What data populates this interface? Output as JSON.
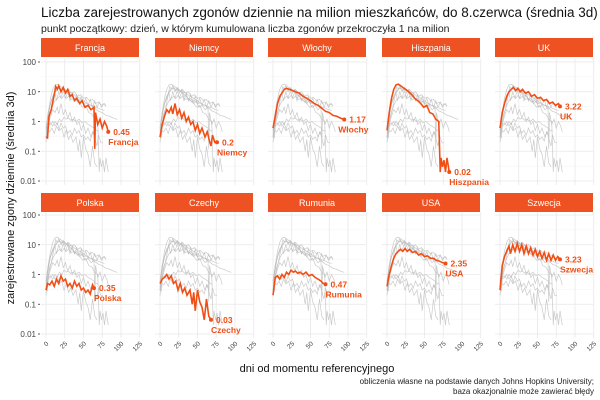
{
  "chart_data": {
    "type": "line",
    "title": "Liczba zarejestrowanych zgonów dziennie na milion mieszkańców, do 8.czerwca (średnia 3d)",
    "subtitle": "punkt początkowy: dzień, w którym kumulowana liczba zgonów przekroczyła 1 na milion",
    "xlabel": "dni od momentu referencyjnego",
    "ylabel": "zarejestrowane zgony dziennie (średnia 3d)",
    "caption": [
      "obliczenia własne na podstawie danych Johns Hopkins University;",
      "baza okazjonalnie może zawierać błędy"
    ],
    "x_ticks": [
      "0",
      "25",
      "50",
      "75",
      "100",
      "125"
    ],
    "y_ticks": [
      "100",
      "10",
      "1",
      "0.1",
      "0.01"
    ],
    "xlim": [
      0,
      125
    ],
    "ylim": [
      0.01,
      100
    ],
    "y_scale": "log10",
    "grid": true,
    "colors": {
      "highlight": "#F04E15",
      "strip": "#EE5223",
      "background_series": "#BDBDBD"
    },
    "facets": [
      {
        "name": "Francja",
        "last": "0.45",
        "values": [
          [
            0,
            0.3
          ],
          [
            2,
            0.28
          ],
          [
            4,
            1.5
          ],
          [
            7,
            2.5
          ],
          [
            10,
            6
          ],
          [
            13,
            15
          ],
          [
            15,
            12
          ],
          [
            17,
            16
          ],
          [
            20,
            10
          ],
          [
            23,
            14
          ],
          [
            26,
            9
          ],
          [
            29,
            12
          ],
          [
            32,
            7
          ],
          [
            35,
            8
          ],
          [
            38,
            5
          ],
          [
            41,
            6
          ],
          [
            45,
            4
          ],
          [
            48,
            5
          ],
          [
            52,
            3
          ],
          [
            56,
            3.5
          ],
          [
            60,
            2.5
          ],
          [
            63,
            2.8
          ],
          [
            64,
            3
          ],
          [
            65,
            0.12
          ],
          [
            66,
            2
          ],
          [
            69,
            0.8
          ],
          [
            72,
            1.2
          ],
          [
            75,
            0.6
          ],
          [
            78,
            1
          ],
          [
            81,
            0.7
          ],
          [
            83,
            0.45
          ]
        ]
      },
      {
        "name": "Niemcy",
        "last": "0.2",
        "values": [
          [
            0,
            0.3
          ],
          [
            3,
            0.8
          ],
          [
            6,
            1.5
          ],
          [
            9,
            2.5
          ],
          [
            12,
            2
          ],
          [
            15,
            3
          ],
          [
            17,
            1.8
          ],
          [
            20,
            4
          ],
          [
            23,
            1.7
          ],
          [
            26,
            2.5
          ],
          [
            29,
            1.3
          ],
          [
            32,
            2
          ],
          [
            35,
            1
          ],
          [
            38,
            1.4
          ],
          [
            41,
            0.8
          ],
          [
            44,
            1
          ],
          [
            47,
            0.5
          ],
          [
            50,
            0.8
          ],
          [
            53,
            0.4
          ],
          [
            56,
            0.6
          ],
          [
            60,
            0.3
          ],
          [
            63,
            0.45
          ],
          [
            66,
            0.22
          ],
          [
            68,
            0.15
          ],
          [
            70,
            0.35
          ],
          [
            73,
            0.2
          ],
          [
            76,
            0.2
          ]
        ]
      },
      {
        "name": "Włochy",
        "last": "1.17",
        "values": [
          [
            0,
            0.6
          ],
          [
            3,
            1.5
          ],
          [
            6,
            4
          ],
          [
            9,
            7
          ],
          [
            12,
            9
          ],
          [
            15,
            12
          ],
          [
            18,
            13
          ],
          [
            22,
            12
          ],
          [
            26,
            11
          ],
          [
            30,
            10
          ],
          [
            35,
            9
          ],
          [
            40,
            7
          ],
          [
            45,
            6
          ],
          [
            50,
            5
          ],
          [
            55,
            4
          ],
          [
            60,
            3.5
          ],
          [
            65,
            2.8
          ],
          [
            70,
            2.2
          ],
          [
            75,
            2
          ],
          [
            80,
            1.6
          ],
          [
            85,
            1.5
          ],
          [
            90,
            1.3
          ],
          [
            95,
            1.17
          ]
        ]
      },
      {
        "name": "Hiszpania",
        "last": "0.02",
        "values": [
          [
            0,
            0.5
          ],
          [
            3,
            2
          ],
          [
            6,
            6
          ],
          [
            9,
            12
          ],
          [
            12,
            17
          ],
          [
            15,
            18
          ],
          [
            18,
            16
          ],
          [
            21,
            14
          ],
          [
            25,
            12
          ],
          [
            29,
            10
          ],
          [
            33,
            8
          ],
          [
            37,
            6
          ],
          [
            41,
            5
          ],
          [
            45,
            4
          ],
          [
            49,
            3
          ],
          [
            53,
            3.5
          ],
          [
            57,
            2
          ],
          [
            61,
            1.8
          ],
          [
            65,
            1.2
          ],
          [
            69,
            1
          ],
          [
            71,
            0.02
          ],
          [
            72,
            0.06
          ],
          [
            74,
            0.03
          ],
          [
            76,
            0.05
          ],
          [
            78,
            0.02
          ],
          [
            80,
            0.06
          ],
          [
            83,
            0.02
          ]
        ]
      },
      {
        "name": "UK",
        "last": "3.22",
        "values": [
          [
            0,
            0.6
          ],
          [
            3,
            2
          ],
          [
            6,
            4
          ],
          [
            9,
            7
          ],
          [
            12,
            10
          ],
          [
            15,
            12
          ],
          [
            18,
            14
          ],
          [
            21,
            11
          ],
          [
            24,
            13
          ],
          [
            27,
            10
          ],
          [
            30,
            12
          ],
          [
            34,
            9
          ],
          [
            38,
            10
          ],
          [
            42,
            7
          ],
          [
            46,
            8
          ],
          [
            50,
            6
          ],
          [
            54,
            6.5
          ],
          [
            58,
            5
          ],
          [
            62,
            5.5
          ],
          [
            66,
            4
          ],
          [
            70,
            4.5
          ],
          [
            74,
            3.5
          ],
          [
            78,
            4
          ],
          [
            80,
            3.22
          ]
        ]
      },
      {
        "name": "Polska",
        "last": "0.35",
        "values": [
          [
            0,
            0.3
          ],
          [
            2,
            0.5
          ],
          [
            5,
            0.45
          ],
          [
            8,
            0.6
          ],
          [
            11,
            0.4
          ],
          [
            14,
            0.7
          ],
          [
            17,
            0.5
          ],
          [
            20,
            0.9
          ],
          [
            23,
            0.6
          ],
          [
            26,
            0.7
          ],
          [
            29,
            0.4
          ],
          [
            32,
            0.5
          ],
          [
            35,
            0.35
          ],
          [
            38,
            0.6
          ],
          [
            41,
            0.4
          ],
          [
            44,
            0.5
          ],
          [
            47,
            0.3
          ],
          [
            50,
            0.35
          ],
          [
            53,
            0.25
          ],
          [
            56,
            0.3
          ],
          [
            59,
            0.22
          ],
          [
            62,
            0.45
          ],
          [
            64,
            0.35
          ]
        ]
      },
      {
        "name": "Czechy",
        "last": "0.03",
        "values": [
          [
            0,
            0.5
          ],
          [
            3,
            0.7
          ],
          [
            6,
            0.8
          ],
          [
            9,
            1
          ],
          [
            12,
            0.7
          ],
          [
            15,
            0.9
          ],
          [
            18,
            0.5
          ],
          [
            21,
            0.6
          ],
          [
            24,
            0.3
          ],
          [
            27,
            0.5
          ],
          [
            30,
            0.25
          ],
          [
            33,
            0.35
          ],
          [
            36,
            0.2
          ],
          [
            40,
            0.3
          ],
          [
            43,
            0.1
          ],
          [
            45,
            0.25
          ],
          [
            47,
            0.06
          ],
          [
            50,
            0.3
          ],
          [
            53,
            0.12
          ],
          [
            56,
            0.08
          ],
          [
            59,
            0.03
          ],
          [
            62,
            0.15
          ],
          [
            65,
            0.04
          ],
          [
            68,
            0.03
          ]
        ]
      },
      {
        "name": "Rumunia",
        "last": "0.47",
        "values": [
          [
            0,
            0.2
          ],
          [
            3,
            0.8
          ],
          [
            6,
            0.9
          ],
          [
            9,
            0.7
          ],
          [
            12,
            1
          ],
          [
            15,
            0.8
          ],
          [
            18,
            1.2
          ],
          [
            21,
            1
          ],
          [
            24,
            1.4
          ],
          [
            27,
            1.2
          ],
          [
            30,
            1.3
          ],
          [
            33,
            1.1
          ],
          [
            36,
            1.2
          ],
          [
            40,
            1
          ],
          [
            44,
            1.2
          ],
          [
            48,
            0.9
          ],
          [
            52,
            1
          ],
          [
            56,
            0.8
          ],
          [
            60,
            0.7
          ],
          [
            64,
            0.6
          ],
          [
            67,
            0.5
          ],
          [
            70,
            0.47
          ]
        ]
      },
      {
        "name": "USA",
        "last": "2.35",
        "values": [
          [
            0,
            0.4
          ],
          [
            3,
            1
          ],
          [
            6,
            2
          ],
          [
            9,
            3.5
          ],
          [
            12,
            5
          ],
          [
            15,
            6
          ],
          [
            18,
            7
          ],
          [
            21,
            6
          ],
          [
            24,
            7.5
          ],
          [
            27,
            6
          ],
          [
            30,
            7
          ],
          [
            34,
            5.5
          ],
          [
            38,
            6
          ],
          [
            42,
            4.5
          ],
          [
            46,
            5
          ],
          [
            50,
            4
          ],
          [
            54,
            4.2
          ],
          [
            58,
            3.5
          ],
          [
            62,
            3.5
          ],
          [
            66,
            3
          ],
          [
            70,
            2.8
          ],
          [
            74,
            2.5
          ],
          [
            78,
            2.35
          ]
        ]
      },
      {
        "name": "Szwecja",
        "last": "3.23",
        "values": [
          [
            0,
            0.3
          ],
          [
            3,
            2
          ],
          [
            6,
            4
          ],
          [
            9,
            6
          ],
          [
            12,
            9
          ],
          [
            14,
            5
          ],
          [
            17,
            10
          ],
          [
            20,
            6
          ],
          [
            23,
            11
          ],
          [
            26,
            6
          ],
          [
            29,
            10
          ],
          [
            32,
            5
          ],
          [
            35,
            9
          ],
          [
            38,
            5
          ],
          [
            41,
            8
          ],
          [
            44,
            4.5
          ],
          [
            47,
            7
          ],
          [
            50,
            4
          ],
          [
            53,
            6
          ],
          [
            56,
            3.5
          ],
          [
            59,
            5.5
          ],
          [
            62,
            3
          ],
          [
            65,
            5
          ],
          [
            68,
            3
          ],
          [
            71,
            4.5
          ],
          [
            74,
            3
          ],
          [
            77,
            4
          ],
          [
            80,
            3.23
          ]
        ]
      }
    ]
  }
}
